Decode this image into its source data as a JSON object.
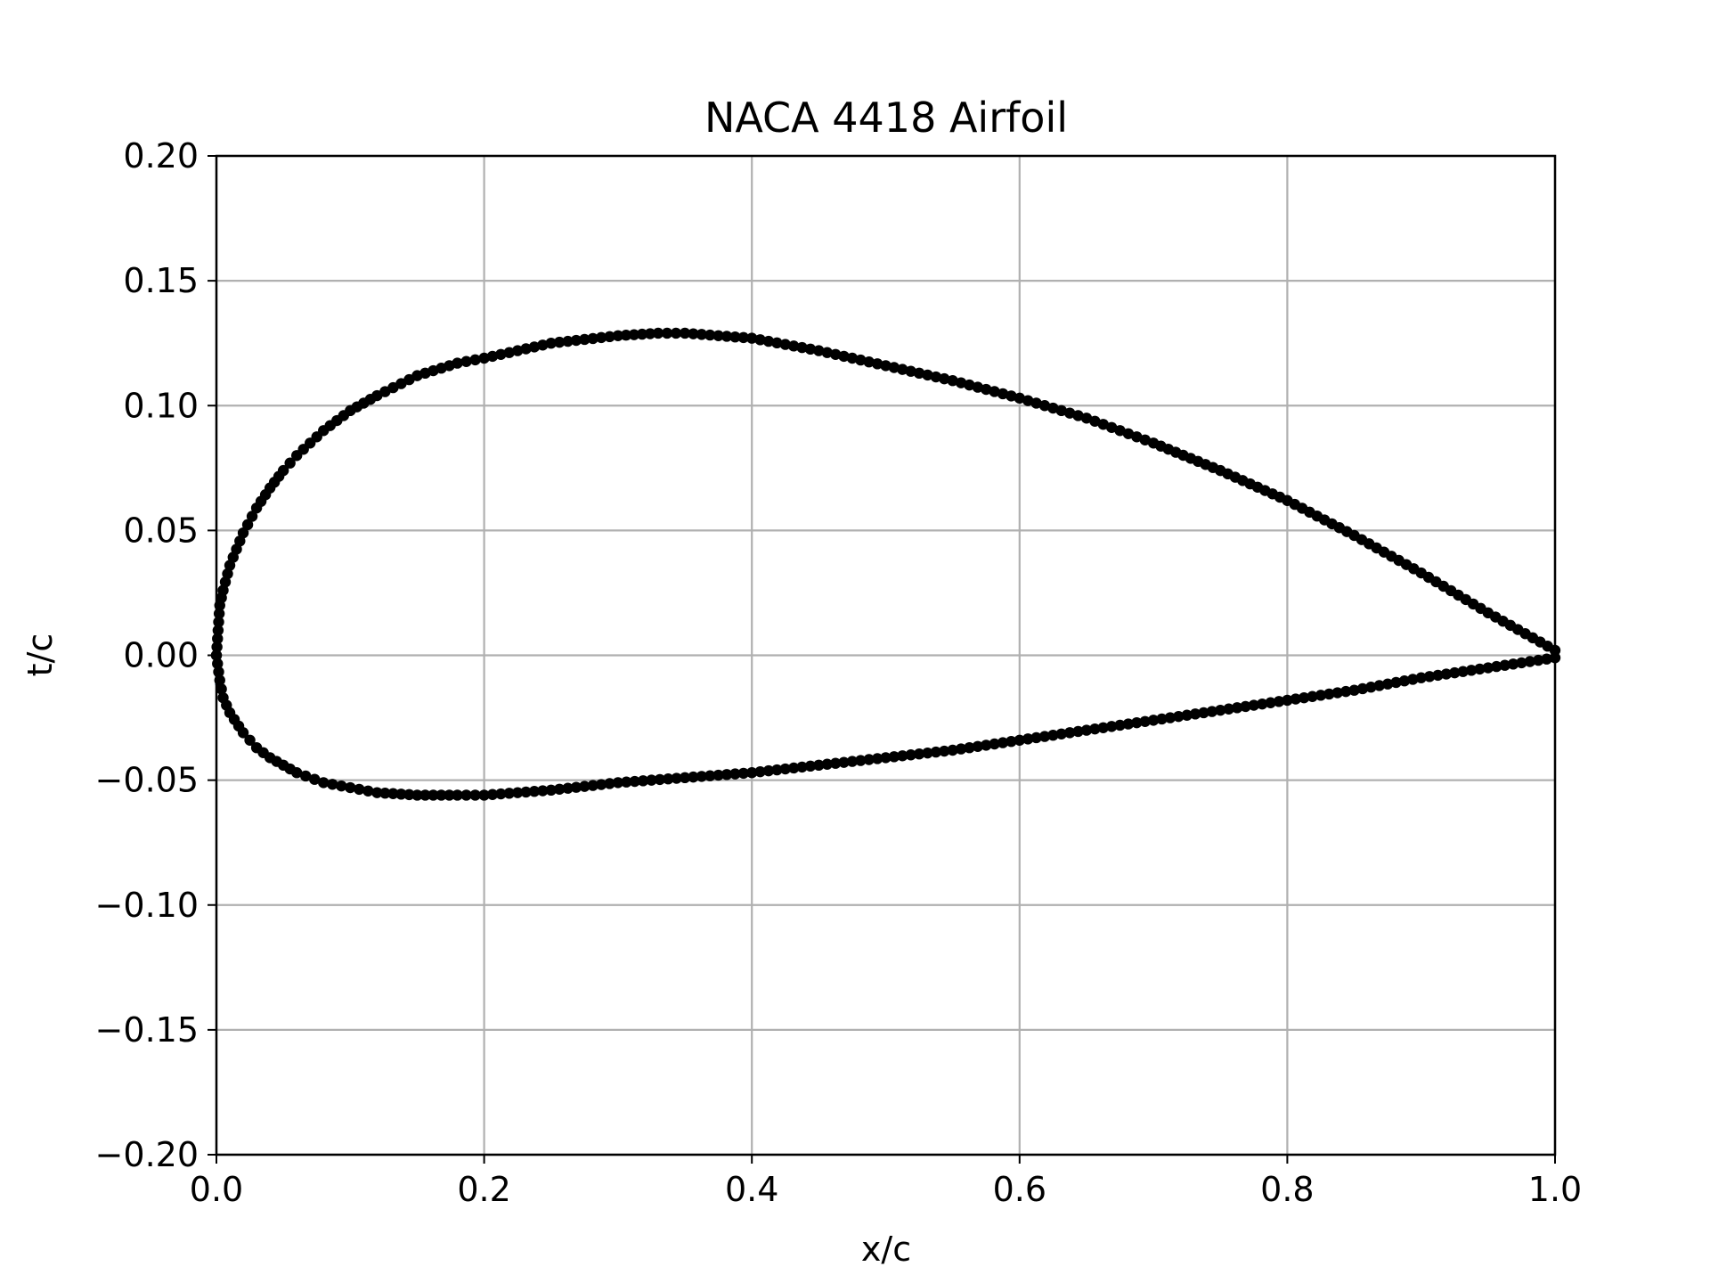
{
  "chart_data": {
    "type": "scatter",
    "title": "NACA 4418 Airfoil",
    "xlabel": "x/c",
    "ylabel": "t/c",
    "xlim": [
      0.0,
      1.0
    ],
    "ylim": [
      -0.2,
      0.2
    ],
    "grid": true,
    "xticks": [
      "0.0",
      "0.2",
      "0.4",
      "0.6",
      "0.8",
      "1.0"
    ],
    "yticks": [
      "0.20",
      "0.15",
      "0.10",
      "0.05",
      "0.00",
      "−0.05",
      "−0.10",
      "−0.15",
      "−0.20"
    ],
    "colors": {
      "markers": "#000000",
      "grid": "#b0b0b0",
      "camber_line": "#1f77b4"
    },
    "series": [
      {
        "surface": "upper",
        "x": [
          0.0,
          0.0025,
          0.005,
          0.01,
          0.02,
          0.03,
          0.04,
          0.05,
          0.06,
          0.08,
          0.1,
          0.12,
          0.15,
          0.18,
          0.2,
          0.25,
          0.3,
          0.33,
          0.35,
          0.4,
          0.45,
          0.5,
          0.55,
          0.6,
          0.65,
          0.7,
          0.75,
          0.8,
          0.85,
          0.9,
          0.95,
          1.0
        ],
        "y": [
          0.0,
          0.02,
          0.026,
          0.036,
          0.049,
          0.059,
          0.067,
          0.074,
          0.08,
          0.09,
          0.098,
          0.104,
          0.112,
          0.117,
          0.119,
          0.125,
          0.128,
          0.129,
          0.129,
          0.127,
          0.122,
          0.116,
          0.11,
          0.103,
          0.095,
          0.085,
          0.074,
          0.062,
          0.048,
          0.033,
          0.017,
          0.002
        ]
      },
      {
        "surface": "lower",
        "x": [
          0.0,
          0.0025,
          0.005,
          0.01,
          0.02,
          0.03,
          0.04,
          0.05,
          0.06,
          0.08,
          0.1,
          0.12,
          0.15,
          0.18,
          0.2,
          0.25,
          0.3,
          0.35,
          0.4,
          0.45,
          0.5,
          0.55,
          0.6,
          0.65,
          0.7,
          0.75,
          0.8,
          0.85,
          0.9,
          0.95,
          1.0
        ],
        "y": [
          0.0,
          -0.01,
          -0.017,
          -0.023,
          -0.031,
          -0.037,
          -0.041,
          -0.044,
          -0.047,
          -0.051,
          -0.053,
          -0.055,
          -0.056,
          -0.056,
          -0.056,
          -0.054,
          -0.051,
          -0.049,
          -0.047,
          -0.044,
          -0.041,
          -0.038,
          -0.034,
          -0.03,
          -0.026,
          -0.022,
          -0.018,
          -0.014,
          -0.009,
          -0.005,
          -0.001
        ]
      }
    ]
  }
}
